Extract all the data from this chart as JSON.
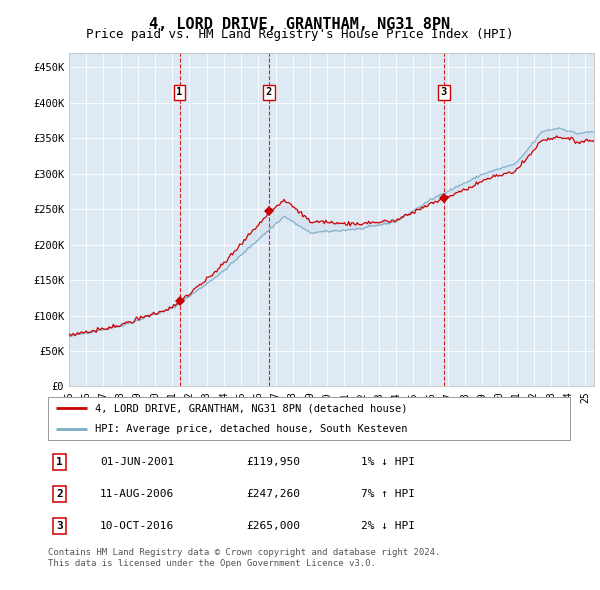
{
  "title": "4, LORD DRIVE, GRANTHAM, NG31 8PN",
  "subtitle": "Price paid vs. HM Land Registry's House Price Index (HPI)",
  "legend_line1": "4, LORD DRIVE, GRANTHAM, NG31 8PN (detached house)",
  "legend_line2": "HPI: Average price, detached house, South Kesteven",
  "footer1": "Contains HM Land Registry data © Crown copyright and database right 2024.",
  "footer2": "This data is licensed under the Open Government Licence v3.0.",
  "transactions": [
    {
      "num": 1,
      "date": "01-JUN-2001",
      "price": 119950,
      "hpi_diff": "1% ↓ HPI",
      "x": 2001.42
    },
    {
      "num": 2,
      "date": "11-AUG-2006",
      "price": 247260,
      "hpi_diff": "7% ↑ HPI",
      "x": 2006.61
    },
    {
      "num": 3,
      "date": "10-OCT-2016",
      "price": 265000,
      "hpi_diff": "2% ↓ HPI",
      "x": 2016.78
    }
  ],
  "xlim": [
    1995,
    2025.5
  ],
  "ylim": [
    0,
    470000
  ],
  "yticks": [
    0,
    50000,
    100000,
    150000,
    200000,
    250000,
    300000,
    350000,
    400000,
    450000
  ],
  "ytick_labels": [
    "£0",
    "£50K",
    "£100K",
    "£150K",
    "£200K",
    "£250K",
    "£300K",
    "£350K",
    "£400K",
    "£450K"
  ],
  "xticks": [
    1995,
    1996,
    1997,
    1998,
    1999,
    2000,
    2001,
    2002,
    2003,
    2004,
    2005,
    2006,
    2007,
    2008,
    2009,
    2010,
    2011,
    2012,
    2013,
    2014,
    2015,
    2016,
    2017,
    2018,
    2019,
    2020,
    2021,
    2022,
    2023,
    2024,
    2025
  ],
  "xtick_labels": [
    "95",
    "96",
    "97",
    "98",
    "99",
    "00",
    "01",
    "02",
    "03",
    "04",
    "05",
    "06",
    "07",
    "08",
    "09",
    "10",
    "11",
    "12",
    "13",
    "14",
    "15",
    "16",
    "17",
    "18",
    "19",
    "20",
    "21",
    "22",
    "23",
    "24",
    "25"
  ],
  "price_color": "#cc0000",
  "hpi_fill_color": "#c5d8e8",
  "hpi_line_color": "#7aaac8",
  "background_color": "#ddeaf4",
  "plot_bg": "#ffffff",
  "vline_color": "#cc0000",
  "marker_box_color": "#cc0000",
  "title_fontsize": 11,
  "subtitle_fontsize": 9
}
